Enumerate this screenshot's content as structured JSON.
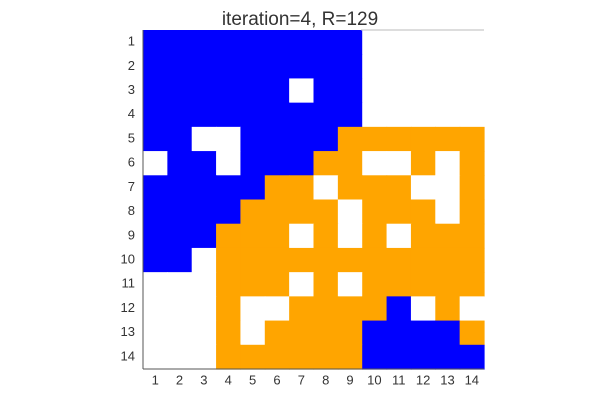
{
  "chart_data": {
    "type": "heatmap",
    "title": "iteration=4, R=129",
    "xlabel": "",
    "ylabel": "",
    "x_ticks": [
      "1",
      "2",
      "3",
      "4",
      "5",
      "6",
      "7",
      "8",
      "9",
      "10",
      "11",
      "12",
      "13",
      "14"
    ],
    "y_ticks": [
      "1",
      "2",
      "3",
      "4",
      "5",
      "6",
      "7",
      "8",
      "9",
      "10",
      "11",
      "12",
      "13",
      "14"
    ],
    "colors": {
      "0": "#ffffff",
      "1": "#0000ff",
      "2": "#ffa500"
    },
    "grid": false,
    "cells": [
      [
        1,
        1,
        1,
        1,
        1,
        1,
        1,
        1,
        1,
        0,
        0,
        0,
        0,
        0
      ],
      [
        1,
        1,
        1,
        1,
        1,
        1,
        1,
        1,
        1,
        0,
        0,
        0,
        0,
        0
      ],
      [
        1,
        1,
        1,
        1,
        1,
        1,
        0,
        1,
        1,
        0,
        0,
        0,
        0,
        0
      ],
      [
        1,
        1,
        1,
        1,
        1,
        1,
        1,
        1,
        1,
        0,
        0,
        0,
        0,
        0
      ],
      [
        1,
        1,
        0,
        0,
        1,
        1,
        1,
        1,
        2,
        2,
        2,
        2,
        2,
        2
      ],
      [
        0,
        1,
        1,
        0,
        1,
        1,
        1,
        2,
        2,
        0,
        0,
        2,
        0,
        2
      ],
      [
        1,
        1,
        1,
        1,
        1,
        2,
        2,
        0,
        2,
        2,
        2,
        0,
        0,
        2
      ],
      [
        1,
        1,
        1,
        1,
        2,
        2,
        2,
        2,
        0,
        2,
        2,
        2,
        0,
        2
      ],
      [
        1,
        1,
        1,
        2,
        2,
        2,
        0,
        2,
        0,
        2,
        0,
        2,
        2,
        2
      ],
      [
        1,
        1,
        0,
        2,
        2,
        2,
        2,
        2,
        2,
        2,
        2,
        2,
        2,
        2
      ],
      [
        0,
        0,
        0,
        2,
        2,
        2,
        0,
        2,
        0,
        2,
        2,
        2,
        2,
        2
      ],
      [
        0,
        0,
        0,
        2,
        0,
        0,
        2,
        2,
        2,
        2,
        1,
        0,
        2,
        0
      ],
      [
        0,
        0,
        0,
        2,
        0,
        2,
        2,
        2,
        2,
        1,
        1,
        1,
        1,
        2
      ],
      [
        0,
        0,
        0,
        2,
        2,
        2,
        2,
        2,
        2,
        1,
        1,
        1,
        1,
        1
      ]
    ]
  }
}
